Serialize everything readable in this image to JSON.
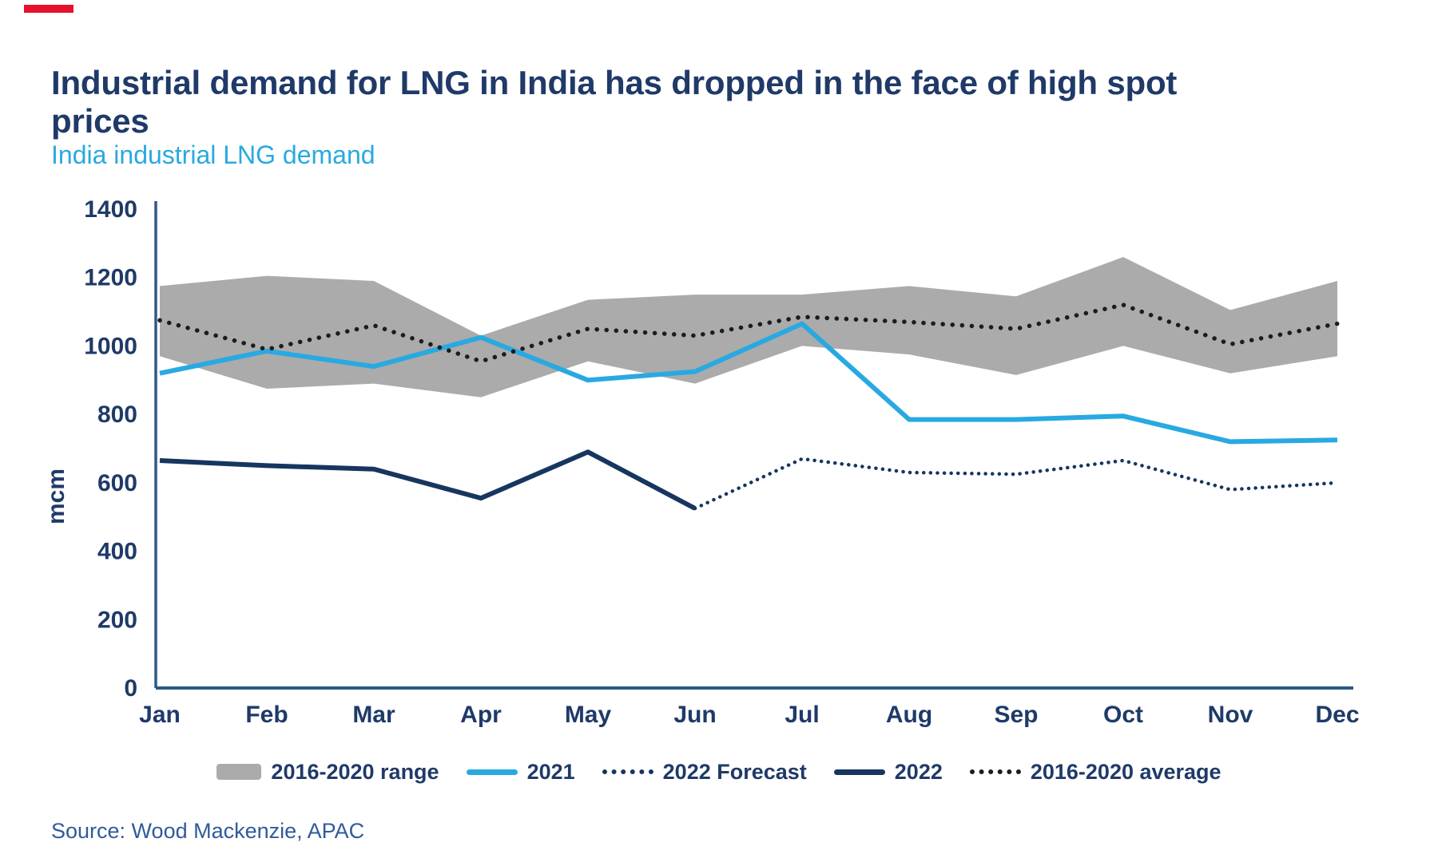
{
  "page": {
    "title": "Industrial demand for LNG in India has dropped in the face of high spot prices",
    "subtitle": "India industrial LNG demand",
    "source": "Source: Wood Mackenzie, APAC",
    "accent_color": "#e8112d"
  },
  "colors": {
    "title_navy": "#1f3a68",
    "axis_navy": "#2e5984",
    "cyan_2021": "#29a9e1",
    "navy_2022": "#16365f",
    "black_average": "#1c1c1c",
    "gray_band": "#ababab",
    "source_blue": "#2f5b9b"
  },
  "chart_data": {
    "type": "line",
    "title": "India industrial LNG demand",
    "xlabel": "",
    "ylabel": "mcm",
    "ylim": [
      0,
      1400
    ],
    "ytick_step": 200,
    "yticks": [
      0,
      200,
      400,
      600,
      800,
      1000,
      1200,
      1400
    ],
    "grid": false,
    "legend_position": "bottom",
    "categories": [
      "Jan",
      "Feb",
      "Mar",
      "Apr",
      "May",
      "Jun",
      "Jul",
      "Aug",
      "Sep",
      "Oct",
      "Nov",
      "Dec"
    ],
    "series": [
      {
        "name": "2016-2020 range",
        "type": "band",
        "color": "#ababab",
        "low": [
          970,
          875,
          890,
          850,
          955,
          890,
          1000,
          975,
          915,
          1000,
          920,
          970
        ],
        "high": [
          1175,
          1205,
          1190,
          1030,
          1135,
          1150,
          1150,
          1175,
          1145,
          1260,
          1105,
          1190
        ]
      },
      {
        "name": "2021",
        "type": "line",
        "style": "solid",
        "color": "#29a9e1",
        "values": [
          920,
          985,
          940,
          1025,
          900,
          925,
          1065,
          785,
          785,
          795,
          720,
          725
        ]
      },
      {
        "name": "2022 Forecast",
        "type": "line",
        "style": "dotted",
        "color": "#16365f",
        "values": [
          null,
          null,
          null,
          null,
          null,
          525,
          670,
          630,
          625,
          665,
          580,
          600
        ]
      },
      {
        "name": "2022",
        "type": "line",
        "style": "solid",
        "color": "#16365f",
        "values": [
          665,
          650,
          640,
          555,
          690,
          525,
          null,
          null,
          null,
          null,
          null,
          null
        ]
      },
      {
        "name": "2016-2020 average",
        "type": "line",
        "style": "dotted",
        "color": "#1c1c1c",
        "values": [
          1075,
          990,
          1060,
          955,
          1050,
          1030,
          1085,
          1070,
          1050,
          1120,
          1005,
          1065
        ]
      }
    ],
    "legend": [
      "2016-2020 range",
      "2021",
      "2022 Forecast",
      "2022",
      "2016-2020 average"
    ]
  },
  "legend_items": {
    "range": "2016-2020 range",
    "y2021": "2021",
    "forecast": "2022 Forecast",
    "y2022": "2022",
    "average": "2016-2020 average"
  }
}
